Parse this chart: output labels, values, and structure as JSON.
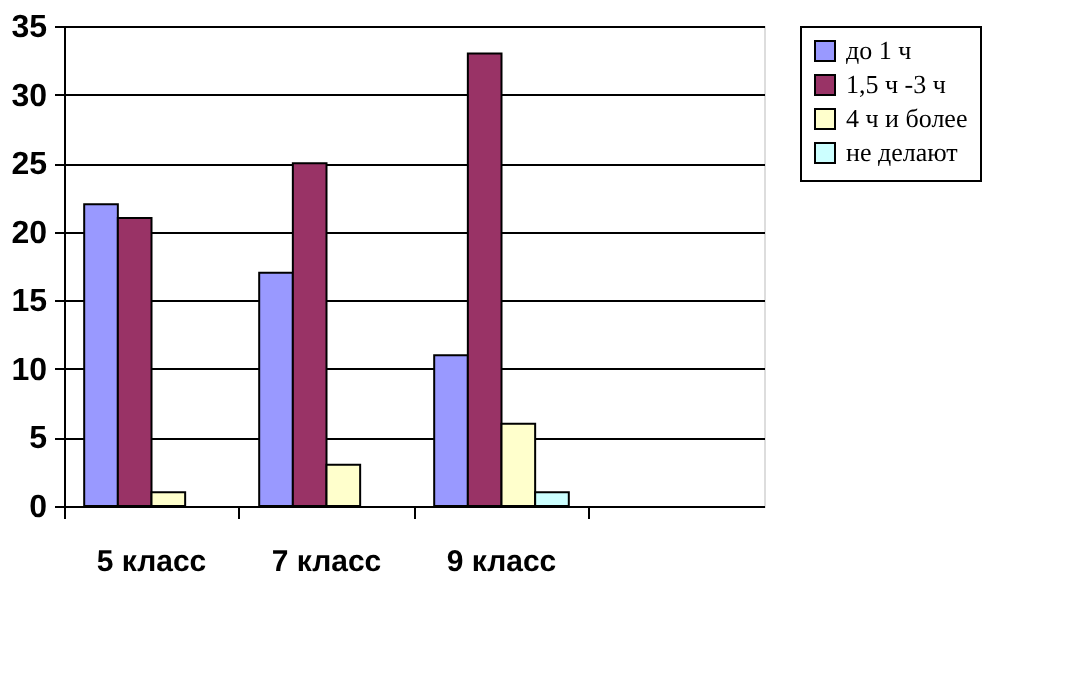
{
  "chart_data": {
    "type": "bar",
    "categories": [
      "5 класс",
      "7 класс",
      "9 класс",
      null
    ],
    "series": [
      {
        "name": "до 1 ч",
        "color": "#9999ff",
        "values": [
          22,
          17,
          11,
          null
        ]
      },
      {
        "name": "1,5 ч -3 ч",
        "color": "#993366",
        "values": [
          21,
          25,
          33,
          null
        ]
      },
      {
        "name": "4 ч и более",
        "color": "#ffffcc",
        "values": [
          1,
          3,
          6,
          null
        ]
      },
      {
        "name": "не делают",
        "color": "#ccffff",
        "values": [
          null,
          null,
          1,
          null
        ]
      }
    ],
    "ylim": [
      0,
      35
    ],
    "yticks": [
      0,
      5,
      10,
      15,
      20,
      25,
      30,
      35
    ],
    "grid": "y",
    "legend": "right"
  }
}
